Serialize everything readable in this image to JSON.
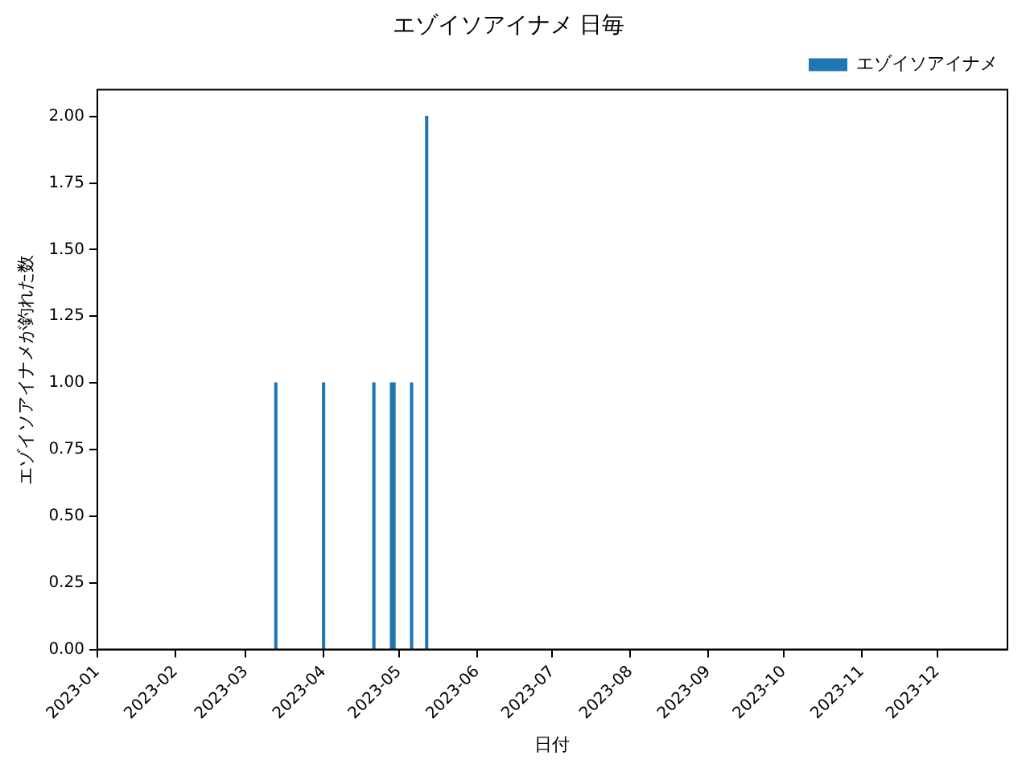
{
  "chart_data": {
    "type": "bar",
    "title": "エゾイソアイナメ 日毎",
    "xlabel": "日付",
    "ylabel": "エゾイソアイナメが釣れた数",
    "x": [
      "2023-03-13",
      "2023-04-01",
      "2023-04-21",
      "2023-04-28",
      "2023-04-29",
      "2023-05-06",
      "2023-05-12"
    ],
    "series": [
      {
        "name": "エゾイソアイナメ",
        "color": "#1f77b4",
        "values": [
          1,
          1,
          1,
          1,
          1,
          1,
          2
        ]
      }
    ],
    "xlim": [
      "2023-01-01",
      "2023-12-29"
    ],
    "xticks": [
      "2023-01",
      "2023-02",
      "2023-03",
      "2023-04",
      "2023-05",
      "2023-06",
      "2023-07",
      "2023-08",
      "2023-09",
      "2023-10",
      "2023-11",
      "2023-12"
    ],
    "ylim": [
      0,
      2.1
    ],
    "yticks": [
      {
        "value": 0,
        "label": "0.00"
      },
      {
        "value": 0.25,
        "label": "0.25"
      },
      {
        "value": 0.5,
        "label": "0.50"
      },
      {
        "value": 0.75,
        "label": "0.75"
      },
      {
        "value": 1,
        "label": "1.00"
      },
      {
        "value": 1.25,
        "label": "1.25"
      },
      {
        "value": 1.5,
        "label": "1.50"
      },
      {
        "value": 1.75,
        "label": "1.75"
      },
      {
        "value": 2,
        "label": "2.00"
      }
    ],
    "grid": false,
    "legend": "top right"
  }
}
